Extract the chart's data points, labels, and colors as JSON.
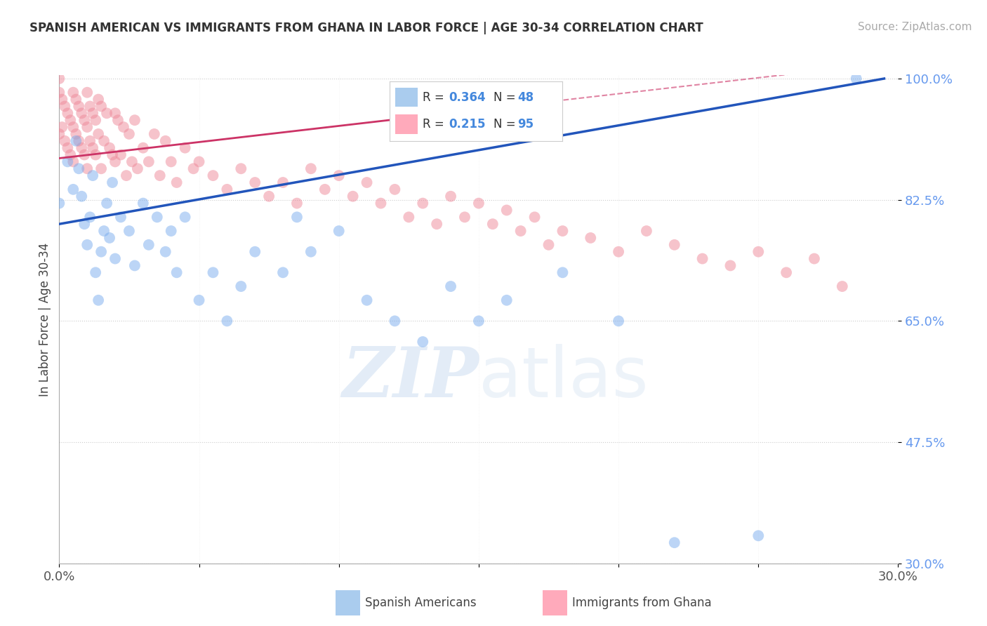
{
  "title": "SPANISH AMERICAN VS IMMIGRANTS FROM GHANA IN LABOR FORCE | AGE 30-34 CORRELATION CHART",
  "source": "Source: ZipAtlas.com",
  "ylabel": "In Labor Force | Age 30-34",
  "xlim": [
    0.0,
    0.3
  ],
  "ylim": [
    0.3,
    1.005
  ],
  "ytick_labels": [
    "100.0%",
    "82.5%",
    "65.0%",
    "47.5%",
    "30.0%"
  ],
  "ytick_vals": [
    1.0,
    0.825,
    0.65,
    0.475,
    0.3
  ],
  "background_color": "#ffffff",
  "blue_color": "#7aadee",
  "pink_color": "#ee8899",
  "blue_line_color": "#2255bb",
  "pink_line_color": "#cc3366",
  "R_blue": 0.364,
  "N_blue": 48,
  "R_pink": 0.215,
  "N_pink": 95,
  "legend_label_blue": "Spanish Americans",
  "legend_label_pink": "Immigrants from Ghana",
  "blue_x": [
    0.0,
    0.003,
    0.005,
    0.006,
    0.007,
    0.008,
    0.009,
    0.01,
    0.011,
    0.012,
    0.013,
    0.014,
    0.015,
    0.016,
    0.017,
    0.018,
    0.019,
    0.02,
    0.022,
    0.025,
    0.027,
    0.03,
    0.032,
    0.035,
    0.038,
    0.04,
    0.042,
    0.045,
    0.05,
    0.055,
    0.06,
    0.065,
    0.07,
    0.08,
    0.085,
    0.09,
    0.1,
    0.11,
    0.12,
    0.13,
    0.14,
    0.15,
    0.16,
    0.18,
    0.2,
    0.22,
    0.25,
    0.285
  ],
  "blue_y": [
    0.82,
    0.88,
    0.84,
    0.91,
    0.87,
    0.83,
    0.79,
    0.76,
    0.8,
    0.86,
    0.72,
    0.68,
    0.75,
    0.78,
    0.82,
    0.77,
    0.85,
    0.74,
    0.8,
    0.78,
    0.73,
    0.82,
    0.76,
    0.8,
    0.75,
    0.78,
    0.72,
    0.8,
    0.68,
    0.72,
    0.65,
    0.7,
    0.75,
    0.72,
    0.8,
    0.75,
    0.78,
    0.68,
    0.65,
    0.62,
    0.7,
    0.65,
    0.68,
    0.72,
    0.65,
    0.33,
    0.34,
    1.0
  ],
  "pink_x": [
    0.0,
    0.0,
    0.0,
    0.001,
    0.001,
    0.002,
    0.002,
    0.003,
    0.003,
    0.004,
    0.004,
    0.005,
    0.005,
    0.005,
    0.006,
    0.006,
    0.007,
    0.007,
    0.008,
    0.008,
    0.009,
    0.009,
    0.01,
    0.01,
    0.01,
    0.011,
    0.011,
    0.012,
    0.012,
    0.013,
    0.013,
    0.014,
    0.014,
    0.015,
    0.015,
    0.016,
    0.017,
    0.018,
    0.019,
    0.02,
    0.02,
    0.021,
    0.022,
    0.023,
    0.024,
    0.025,
    0.026,
    0.027,
    0.028,
    0.03,
    0.032,
    0.034,
    0.036,
    0.038,
    0.04,
    0.042,
    0.045,
    0.048,
    0.05,
    0.055,
    0.06,
    0.065,
    0.07,
    0.075,
    0.08,
    0.085,
    0.09,
    0.095,
    0.1,
    0.105,
    0.11,
    0.115,
    0.12,
    0.125,
    0.13,
    0.135,
    0.14,
    0.145,
    0.15,
    0.155,
    0.16,
    0.165,
    0.17,
    0.175,
    0.18,
    0.19,
    0.2,
    0.21,
    0.22,
    0.23,
    0.24,
    0.25,
    0.26,
    0.27,
    0.28
  ],
  "pink_y": [
    0.98,
    0.92,
    1.0,
    0.97,
    0.93,
    0.96,
    0.91,
    0.95,
    0.9,
    0.94,
    0.89,
    0.98,
    0.93,
    0.88,
    0.97,
    0.92,
    0.96,
    0.91,
    0.95,
    0.9,
    0.94,
    0.89,
    0.98,
    0.93,
    0.87,
    0.96,
    0.91,
    0.95,
    0.9,
    0.94,
    0.89,
    0.97,
    0.92,
    0.96,
    0.87,
    0.91,
    0.95,
    0.9,
    0.89,
    0.95,
    0.88,
    0.94,
    0.89,
    0.93,
    0.86,
    0.92,
    0.88,
    0.94,
    0.87,
    0.9,
    0.88,
    0.92,
    0.86,
    0.91,
    0.88,
    0.85,
    0.9,
    0.87,
    0.88,
    0.86,
    0.84,
    0.87,
    0.85,
    0.83,
    0.85,
    0.82,
    0.87,
    0.84,
    0.86,
    0.83,
    0.85,
    0.82,
    0.84,
    0.8,
    0.82,
    0.79,
    0.83,
    0.8,
    0.82,
    0.79,
    0.81,
    0.78,
    0.8,
    0.76,
    0.78,
    0.77,
    0.75,
    0.78,
    0.76,
    0.74,
    0.73,
    0.75,
    0.72,
    0.74,
    0.7
  ]
}
